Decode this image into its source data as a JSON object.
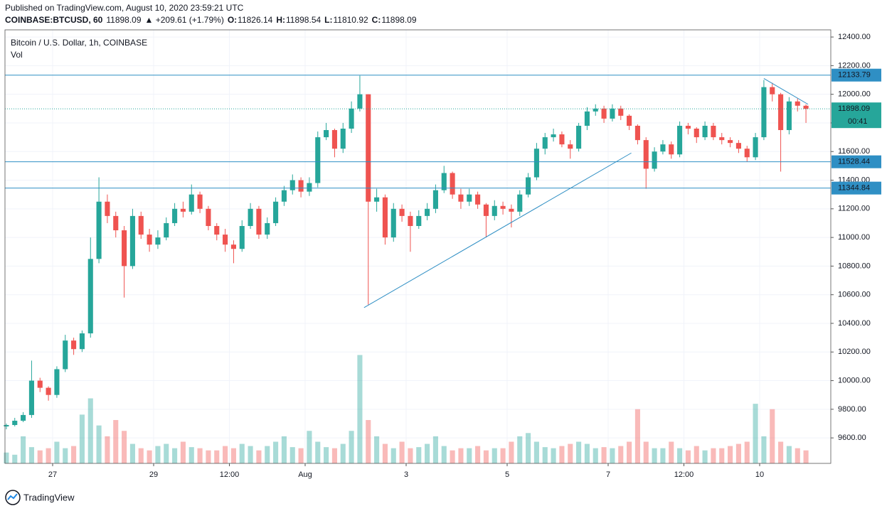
{
  "chart_data": {
    "type": "candlestick",
    "published": "Published on TradingView.com, August 10, 2020 23:59:21 UTC",
    "symbol": "COINBASE:BTCUSD, 60",
    "last": 11898.09,
    "change": "▲ +209.61 (+1.79%)",
    "quote": [
      {
        "label": "O:",
        "value": 11826.14
      },
      {
        "label": "H:",
        "value": 11898.54
      },
      {
        "label": "L:",
        "value": 11810.92
      },
      {
        "label": "C:",
        "value": 11898.09
      }
    ],
    "title": "Bitcoin / U.S. Dollar, 1h, COINBASE",
    "volume_label": "Vol",
    "brand": "TradingView",
    "countdown": "00:41",
    "up_color": "#26a69a",
    "down_color": "#ef5350",
    "line_color": "#2f8fc4",
    "grid": true,
    "xlim": [
      1.35,
      393.8
    ],
    "xticks": [
      {
        "value": 24,
        "label": "27"
      },
      {
        "value": 72,
        "label": "29"
      },
      {
        "value": 108,
        "label": "12:00"
      },
      {
        "value": 144,
        "label": "Aug"
      },
      {
        "value": 192,
        "label": "3"
      },
      {
        "value": 240,
        "label": "5"
      },
      {
        "value": 288,
        "label": "7"
      },
      {
        "value": 324,
        "label": "12:00"
      },
      {
        "value": 360,
        "label": "10"
      }
    ],
    "ylim": [
      9422,
      12450
    ],
    "yticks": [
      {
        "value": 9600,
        "label": "9600.00"
      },
      {
        "value": 9800,
        "label": "9800.00"
      },
      {
        "value": 10000,
        "label": "10000.00"
      },
      {
        "value": 10200,
        "label": "10200.00"
      },
      {
        "value": 10400,
        "label": "10400.00"
      },
      {
        "value": 10600,
        "label": "10600.00"
      },
      {
        "value": 10800,
        "label": "10800.00"
      },
      {
        "value": 11000,
        "label": "11000.00"
      },
      {
        "value": 11200,
        "label": "11200.00"
      },
      {
        "value": 11400,
        "label": "11400.00"
      },
      {
        "value": 11600,
        "label": "11600.00"
      },
      {
        "value": 11800,
        "label": "11800.00"
      },
      {
        "value": 12000,
        "label": "12000.00"
      },
      {
        "value": 12200,
        "label": "12200.00"
      },
      {
        "value": 12400,
        "label": "12400.00"
      }
    ],
    "price_lines": [
      12133.79,
      11528.44,
      11344.84
    ],
    "trendlines": [
      {
        "x": [
          172,
          299
        ],
        "y": [
          10510,
          11590
        ]
      },
      {
        "x": [
          362,
          383
        ],
        "y": [
          12110,
          11930
        ]
      }
    ],
    "x": [
      2,
      6,
      10,
      14,
      18,
      22,
      26,
      30,
      34,
      38,
      42,
      46,
      50,
      54,
      58,
      62,
      66,
      70,
      74,
      78,
      82,
      86,
      90,
      94,
      98,
      102,
      106,
      110,
      114,
      118,
      122,
      126,
      130,
      134,
      138,
      142,
      146,
      150,
      154,
      158,
      162,
      166,
      170,
      174,
      178,
      182,
      186,
      190,
      194,
      198,
      202,
      206,
      210,
      214,
      218,
      222,
      226,
      230,
      234,
      238,
      242,
      246,
      250,
      254,
      258,
      262,
      266,
      270,
      274,
      278,
      282,
      286,
      290,
      294,
      298,
      302,
      306,
      310,
      314,
      318,
      322,
      326,
      330,
      334,
      338,
      342,
      346,
      350,
      354,
      358,
      362,
      366,
      370,
      374,
      378,
      382
    ],
    "open": [
      9680,
      9690,
      9720,
      9760,
      10000,
      9950,
      9900,
      10080,
      10280,
      10220,
      10330,
      10850,
      11250,
      11150,
      11050,
      10800,
      11150,
      11020,
      10950,
      11000,
      11100,
      11200,
      11180,
      11300,
      11200,
      11080,
      11020,
      10950,
      10920,
      11080,
      11200,
      11020,
      11100,
      11250,
      11330,
      11400,
      11320,
      11380,
      11700,
      11750,
      11620,
      11760,
      11900,
      12000,
      11250,
      11280,
      11000,
      11200,
      11150,
      11080,
      11150,
      11200,
      11330,
      11450,
      11300,
      11250,
      11300,
      11230,
      11150,
      11220,
      11200,
      11180,
      11300,
      11420,
      11620,
      11700,
      11720,
      11650,
      11620,
      11780,
      11880,
      11900,
      11830,
      11900,
      11850,
      11780,
      11680,
      11480,
      11600,
      11650,
      11580,
      11780,
      11760,
      11700,
      11780,
      11700,
      11680,
      11660,
      11620,
      11560,
      11700,
      12050,
      12000,
      11750,
      11950,
      11920
    ],
    "high": [
      9700,
      9740,
      9780,
      10140,
      10020,
      9960,
      10100,
      10320,
      10300,
      10350,
      11000,
      11420,
      11300,
      11180,
      11080,
      11200,
      11180,
      11060,
      11050,
      11140,
      11240,
      11250,
      11370,
      11320,
      11220,
      11100,
      11060,
      10980,
      11120,
      11240,
      11220,
      11140,
      11280,
      11360,
      11440,
      11420,
      11420,
      11740,
      11800,
      11760,
      11800,
      11950,
      12130,
      12000,
      11340,
      11300,
      11240,
      11230,
      11180,
      11190,
      11240,
      11370,
      11500,
      11460,
      11340,
      11340,
      11320,
      11240,
      11260,
      11250,
      11230,
      11330,
      11450,
      11660,
      11730,
      11760,
      11740,
      11680,
      11800,
      11910,
      11930,
      11920,
      11930,
      11920,
      11860,
      11790,
      11700,
      11630,
      11680,
      11670,
      11810,
      11800,
      11770,
      11810,
      11800,
      11730,
      11700,
      11680,
      11640,
      11730,
      12100,
      12080,
      12010,
      11980,
      11970,
      11930
    ],
    "low": [
      9660,
      9680,
      9710,
      9740,
      9920,
      9860,
      9880,
      10060,
      10180,
      10200,
      10300,
      10820,
      11100,
      11000,
      10580,
      10780,
      10990,
      10900,
      10920,
      10980,
      11080,
      11140,
      11160,
      11170,
      11050,
      10980,
      10900,
      10820,
      10900,
      11060,
      10990,
      10990,
      11080,
      11220,
      11300,
      11280,
      11290,
      11350,
      11680,
      11560,
      11590,
      11730,
      11880,
      10530,
      11180,
      10950,
      10970,
      11110,
      10900,
      11060,
      11120,
      11170,
      11310,
      11270,
      11200,
      11220,
      11200,
      11000,
      11120,
      11160,
      11070,
      11150,
      11280,
      11400,
      11580,
      11670,
      11630,
      11550,
      11600,
      11750,
      11850,
      11800,
      11810,
      11820,
      11750,
      11650,
      11340,
      11460,
      11580,
      11550,
      11560,
      11720,
      11660,
      11680,
      11680,
      11650,
      11630,
      11590,
      11530,
      11540,
      11680,
      11950,
      11460,
      11720,
      11880,
      11800
    ],
    "close": [
      9690,
      9720,
      9760,
      10000,
      9950,
      9900,
      10080,
      10280,
      10220,
      10330,
      10850,
      11250,
      11150,
      11050,
      10800,
      11150,
      11020,
      10950,
      11000,
      11100,
      11200,
      11180,
      11300,
      11200,
      11080,
      11020,
      10950,
      10920,
      11080,
      11200,
      11020,
      11100,
      11250,
      11330,
      11400,
      11320,
      11380,
      11700,
      11750,
      11620,
      11760,
      11900,
      12000,
      11250,
      11280,
      11000,
      11200,
      11150,
      11080,
      11150,
      11200,
      11330,
      11450,
      11300,
      11250,
      11300,
      11230,
      11150,
      11220,
      11200,
      11180,
      11300,
      11420,
      11620,
      11700,
      11720,
      11650,
      11620,
      11780,
      11880,
      11900,
      11830,
      11900,
      11850,
      11780,
      11680,
      11480,
      11600,
      11650,
      11580,
      11780,
      11760,
      11700,
      11780,
      11700,
      11680,
      11660,
      11620,
      11560,
      11700,
      12050,
      12000,
      11750,
      11950,
      11920,
      11898.09
    ],
    "volume": {
      "ylim": [
        0,
        400
      ],
      "values": [
        10,
        8,
        25,
        15,
        12,
        14,
        20,
        14,
        16,
        45,
        60,
        35,
        25,
        40,
        30,
        18,
        14,
        12,
        16,
        18,
        14,
        20,
        15,
        14,
        12,
        12,
        16,
        14,
        18,
        16,
        12,
        16,
        20,
        25,
        15,
        14,
        30,
        20,
        15,
        14,
        18,
        30,
        100,
        40,
        25,
        18,
        14,
        20,
        14,
        15,
        18,
        25,
        16,
        12,
        14,
        14,
        16,
        12,
        14,
        14,
        20,
        25,
        28,
        20,
        15,
        14,
        16,
        18,
        20,
        18,
        14,
        15,
        14,
        16,
        20,
        50,
        20,
        14,
        14,
        20,
        14,
        12,
        16,
        12,
        14,
        14,
        16,
        18,
        20,
        55,
        25,
        50,
        20,
        16,
        14,
        12
      ]
    }
  }
}
